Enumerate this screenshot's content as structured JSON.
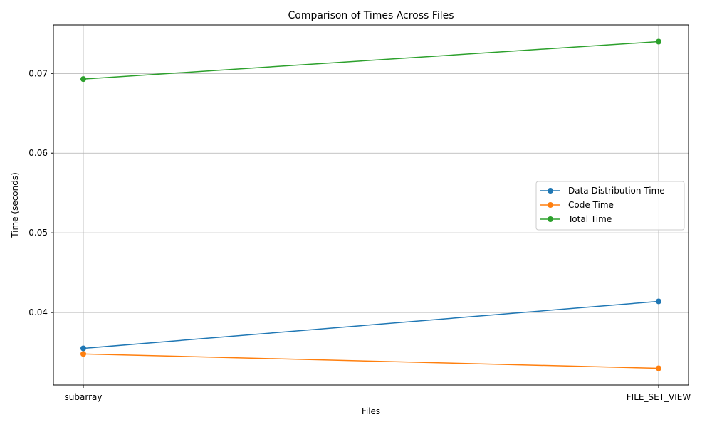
{
  "chart_data": {
    "type": "line",
    "title": "Comparison of Times Across Files",
    "xlabel": "Files",
    "ylabel": "Time (seconds)",
    "categories": [
      "subarray",
      "FILE_SET_VIEW"
    ],
    "ylim": [
      0.0309,
      0.0761
    ],
    "yticks": [
      "0.04",
      "0.05",
      "0.06",
      "0.07"
    ],
    "grid": true,
    "legend_position": "center-right",
    "markers": "circle",
    "series": [
      {
        "name": "Data Distribution Time",
        "color": "#1f77b4",
        "values": [
          0.0355,
          0.0414
        ]
      },
      {
        "name": "Code Time",
        "color": "#ff7f0e",
        "values": [
          0.0348,
          0.033
        ]
      },
      {
        "name": "Total Time",
        "color": "#2ca02c",
        "values": [
          0.0693,
          0.074
        ]
      }
    ]
  }
}
